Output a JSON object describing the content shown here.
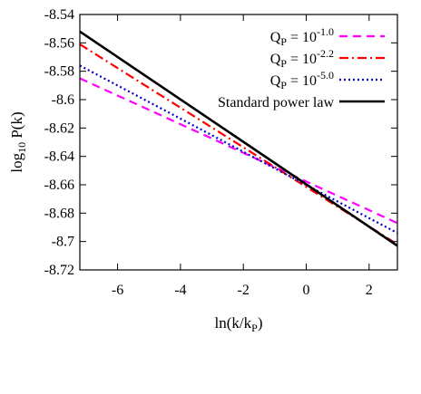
{
  "chart_data": {
    "type": "line",
    "title": "",
    "xlabel": {
      "base": "ln(k/k",
      "sub": "P",
      "tail": ")"
    },
    "ylabel": {
      "base": "log",
      "sub": "10",
      "tail": " P(k)"
    },
    "xlim": [
      -7.2,
      2.9
    ],
    "ylim": [
      -8.72,
      -8.54
    ],
    "x_ticks": [
      {
        "value": -6,
        "label": "-6"
      },
      {
        "value": -4,
        "label": "-4"
      },
      {
        "value": -2,
        "label": "-2"
      },
      {
        "value": 0,
        "label": "0"
      },
      {
        "value": 2,
        "label": "2"
      }
    ],
    "y_ticks": [
      {
        "value": -8.54,
        "label": "-8.54"
      },
      {
        "value": -8.56,
        "label": "-8.56"
      },
      {
        "value": -8.58,
        "label": "-8.58"
      },
      {
        "value": -8.6,
        "label": "-8.6"
      },
      {
        "value": -8.62,
        "label": "-8.62"
      },
      {
        "value": -8.64,
        "label": "-8.64"
      },
      {
        "value": -8.66,
        "label": "-8.66"
      },
      {
        "value": -8.68,
        "label": "-8.68"
      },
      {
        "value": -8.7,
        "label": "-8.7"
      },
      {
        "value": -8.72,
        "label": "-8.72"
      }
    ],
    "grid": false,
    "legend_position": "top-right",
    "series": [
      {
        "name": {
          "base": "Q",
          "sub": "P",
          "mid": " = 10",
          "sup": "-1.0"
        },
        "color": "#ff00ff",
        "dash": "dashed",
        "x": [
          -7.2,
          2.9
        ],
        "y": [
          -8.585,
          -8.687
        ]
      },
      {
        "name": {
          "base": "Q",
          "sub": "P",
          "mid": " = 10",
          "sup": "-2.2"
        },
        "color": "#ff0000",
        "dash": "dash-dot",
        "x": [
          -7.2,
          2.9
        ],
        "y": [
          -8.561,
          -8.702
        ]
      },
      {
        "name": {
          "base": "Q",
          "sub": "P",
          "mid": " = 10",
          "sup": "-5.0"
        },
        "color": "#0000cd",
        "dash": "dotted",
        "x": [
          -7.2,
          2.9
        ],
        "y": [
          -8.576,
          -8.694
        ]
      },
      {
        "name": {
          "base": "Standard power law",
          "sub": "",
          "mid": "",
          "sup": ""
        },
        "color": "#000000",
        "dash": "solid",
        "x": [
          -7.2,
          2.9
        ],
        "y": [
          -8.552,
          -8.703
        ]
      }
    ]
  }
}
